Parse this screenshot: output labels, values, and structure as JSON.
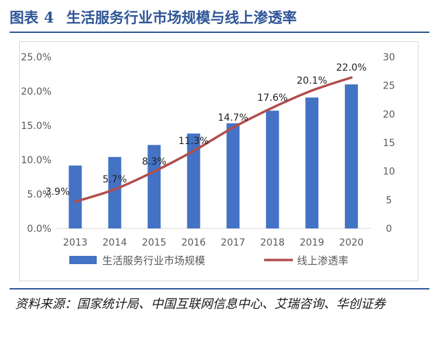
{
  "figure": {
    "label": "图表",
    "number": "4",
    "title": "生活服务行业市场规模与线上渗透率"
  },
  "source": "资料来源：国家统计局、中国互联网信息中心、艾瑞咨询、华创证券",
  "colors": {
    "title": "#2e5597",
    "bar": "#4472c4",
    "line": "#b14e4c",
    "axis_text": "#595959",
    "grid": "#d9d9d9"
  },
  "chart_data": {
    "type": "bar+line",
    "categories": [
      "2013",
      "2014",
      "2015",
      "2016",
      "2017",
      "2018",
      "2019",
      "2020"
    ],
    "series": [
      {
        "name": "生活服务行业市场规模",
        "type": "bar",
        "axis": "right",
        "values": [
          11.0,
          12.5,
          14.6,
          16.6,
          18.4,
          20.6,
          22.9,
          25.2
        ]
      },
      {
        "name": "线上渗透率",
        "type": "line",
        "axis": "left",
        "values": [
          3.9,
          5.7,
          8.3,
          11.3,
          14.7,
          17.6,
          20.1,
          22.0
        ],
        "labels": [
          "3.9%",
          "5.7%",
          "8.3%",
          "11.3%",
          "14.7%",
          "17.6%",
          "20.1%",
          "22.0%"
        ]
      }
    ],
    "y_left": {
      "min": 0,
      "max": 25,
      "step": 5,
      "ticks": [
        "0.0%",
        "5.0%",
        "10.0%",
        "15.0%",
        "20.0%",
        "25.0%"
      ]
    },
    "y_right": {
      "min": 0,
      "max": 30,
      "step": 5,
      "ticks": [
        "0",
        "5",
        "10",
        "15",
        "20",
        "25",
        "30"
      ]
    },
    "grid": false,
    "legend": "bottom"
  }
}
